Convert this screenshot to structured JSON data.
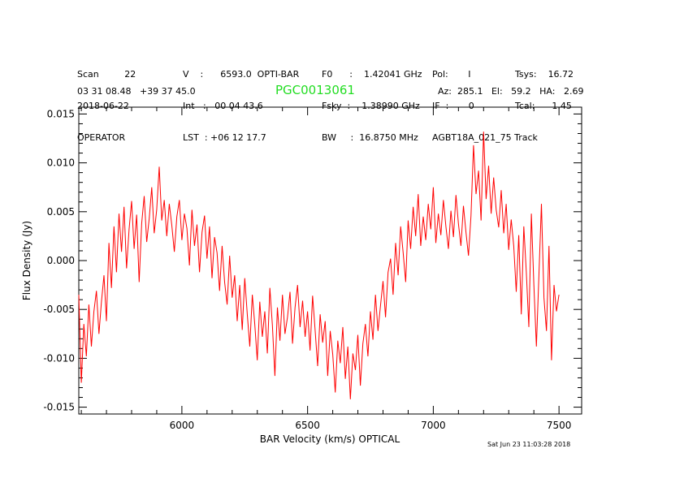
{
  "header": {
    "col1": [
      "Scan         22",
      "2018-06-22",
      "OPERATOR"
    ],
    "col2": [
      "V    :      6593.0  OPTI-BAR",
      "Int   :   00 04 43.6",
      "LST  : +06 12 17.7"
    ],
    "col3": [
      "F0      :    1.42041 GHz",
      "Fsky  :    1.38990 GHz",
      "BW     :  16.8750 MHz"
    ],
    "col4": [
      "Pol:       I",
      "IF  :       0",
      "AGBT18A_021_75 Track"
    ],
    "col5": [
      "Tsys:    16.72",
      "Tcal:      1.45"
    ],
    "coords": "03 31 08.48   +39 37 45.0",
    "source": "PGC0013061",
    "azel": "Az:  285.1   El:   59.2   HA:   2.69"
  },
  "footer": {
    "timestamp": "Sat Jun 23 11:03:28 2018"
  },
  "chart_data": {
    "type": "line",
    "xlabel": "BAR Velocity (km/s) OPTICAL",
    "ylabel": "Flux Density (Jy)",
    "xlim": [
      5590,
      7590
    ],
    "ylim": [
      -0.0157,
      0.0157
    ],
    "x_ticks": [
      6000,
      6500,
      7000,
      7500
    ],
    "y_ticks": [
      -0.015,
      -0.01,
      -0.005,
      0.0,
      0.005,
      0.01,
      0.015
    ],
    "y_tick_labels": [
      "-0.015",
      "-0.010",
      "-0.005",
      "0.000",
      "0.005",
      "0.010",
      "0.015"
    ],
    "color": "#ff0000",
    "series": [
      {
        "x_start": 5590,
        "x_step": 10,
        "values": [
          -0.0035,
          -0.0125,
          -0.0065,
          -0.0098,
          -0.0045,
          -0.0088,
          -0.0052,
          -0.0031,
          -0.0075,
          -0.0042,
          -0.0015,
          -0.0062,
          0.0018,
          -0.0028,
          0.0035,
          -0.0012,
          0.0048,
          0.0009,
          0.0055,
          -0.0008,
          0.0032,
          0.0061,
          0.0012,
          0.0047,
          -0.0022,
          0.0038,
          0.0066,
          0.0019,
          0.0043,
          0.0075,
          0.0028,
          0.0052,
          0.0096,
          0.0041,
          0.0062,
          0.0025,
          0.0058,
          0.0036,
          0.0009,
          0.0045,
          0.0062,
          0.0021,
          0.0048,
          0.0033,
          -0.0005,
          0.0052,
          0.0015,
          0.0037,
          -0.0012,
          0.0029,
          0.0046,
          0.0002,
          0.0035,
          -0.0018,
          0.0024,
          0.0008,
          -0.0031,
          0.0015,
          -0.0022,
          -0.0045,
          0.0005,
          -0.0038,
          -0.0015,
          -0.0062,
          -0.0025,
          -0.0071,
          -0.0018,
          -0.0055,
          -0.0088,
          -0.0035,
          -0.0065,
          -0.0102,
          -0.0042,
          -0.0078,
          -0.0052,
          -0.0095,
          -0.0028,
          -0.0066,
          -0.0118,
          -0.0048,
          -0.0082,
          -0.0035,
          -0.0075,
          -0.0058,
          -0.0032,
          -0.0085,
          -0.0048,
          -0.0025,
          -0.0068,
          -0.0041,
          -0.0078,
          -0.0052,
          -0.0092,
          -0.0036,
          -0.0071,
          -0.0108,
          -0.0055,
          -0.0084,
          -0.0062,
          -0.0118,
          -0.0072,
          -0.0096,
          -0.0135,
          -0.0082,
          -0.0105,
          -0.0068,
          -0.0121,
          -0.0088,
          -0.0142,
          -0.0095,
          -0.0112,
          -0.0076,
          -0.0128,
          -0.0085,
          -0.0065,
          -0.0098,
          -0.0052,
          -0.0081,
          -0.0035,
          -0.0072,
          -0.0046,
          -0.0021,
          -0.0058,
          -0.0012,
          0.0002,
          -0.0035,
          0.0018,
          -0.0015,
          0.0035,
          0.0008,
          -0.0022,
          0.0041,
          0.0012,
          0.0055,
          0.0025,
          0.0068,
          0.0015,
          0.0045,
          0.0021,
          0.0058,
          0.0032,
          0.0075,
          0.0018,
          0.0048,
          0.0026,
          0.0062,
          0.0035,
          0.0012,
          0.0051,
          0.0024,
          0.0067,
          0.0038,
          0.0015,
          0.0056,
          0.0029,
          0.0005,
          0.0046,
          0.0118,
          0.0068,
          0.0092,
          0.0041,
          0.0132,
          0.0063,
          0.0097,
          0.0048,
          0.0085,
          0.0052,
          0.0034,
          0.0072,
          0.0028,
          0.0058,
          0.0011,
          0.0042,
          0.0015,
          -0.0032,
          0.0026,
          -0.0055,
          0.0035,
          -0.0012,
          -0.0068,
          0.0048,
          -0.0025,
          -0.0088,
          -0.0015,
          0.0058,
          -0.0038,
          -0.0072,
          0.0015,
          -0.0102,
          -0.0025,
          -0.0052,
          -0.0035
        ]
      }
    ]
  }
}
